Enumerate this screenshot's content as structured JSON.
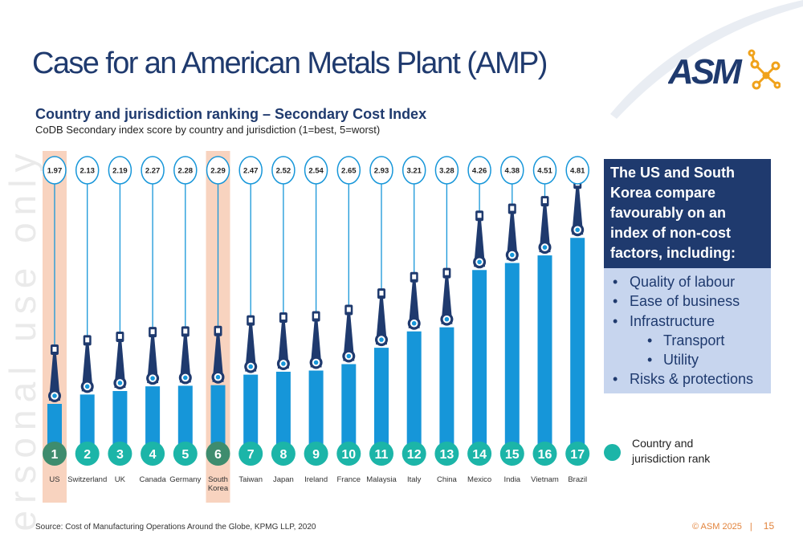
{
  "slide": {
    "title": "Case for an American Metals Plant (AMP)",
    "logo_text": "ASM",
    "watermark": "ersonal use only",
    "source": "Source: Cost of Manufacturing Operations Around the Globe, KPMG LLP, 2020",
    "copyright": "© ASM 2025",
    "separator": "|",
    "page_number": "15"
  },
  "callout": {
    "heading": "The US and South Korea compare favourably on an index of non-cost factors, including:",
    "bullets": [
      {
        "text": "Quality of labour",
        "level": 1
      },
      {
        "text": "Ease of business",
        "level": 1
      },
      {
        "text": "Infrastructure",
        "level": 1
      },
      {
        "text": "Transport",
        "level": 2
      },
      {
        "text": "Utility",
        "level": 2
      },
      {
        "text": "Risks & protections",
        "level": 1
      }
    ],
    "bullet_symbol": "•"
  },
  "legend": {
    "label": "Country and jurisdiction rank",
    "color": "#1cb5a8"
  },
  "colors": {
    "navy": "#1f3a6e",
    "bar": "#1696d9",
    "highlight": "#f8d3bf",
    "rank_default": "#1cb5a8",
    "rank_highlight": "#3e8c6e",
    "accent": "#e2833b"
  },
  "chart_data": {
    "type": "bar",
    "title": "Country and jurisdiction ranking – Secondary Cost Index",
    "subtitle": "CoDB Secondary index score by country and jurisdiction (1=best, 5=worst)",
    "categories": [
      "US",
      "Switzerland",
      "UK",
      "Canada",
      "Germany",
      "South Korea",
      "Taiwan",
      "Japan",
      "Ireland",
      "France",
      "Malaysia",
      "Italy",
      "China",
      "Mexico",
      "India",
      "Vietnam",
      "Brazil"
    ],
    "values": [
      1.97,
      2.13,
      2.19,
      2.27,
      2.28,
      2.29,
      2.47,
      2.52,
      2.54,
      2.65,
      2.93,
      3.21,
      3.28,
      4.26,
      4.38,
      4.51,
      4.81
    ],
    "value_labels": [
      "1.97",
      "2.13",
      "2.19",
      "2.27",
      "2.28",
      "2.29",
      "2.47",
      "2.52",
      "2.54",
      "2.65",
      "2.93",
      "3.21",
      "3.28",
      "4.26",
      "4.38",
      "4.51",
      "4.81"
    ],
    "ranks": [
      "1",
      "2",
      "3",
      "4",
      "5",
      "6",
      "7",
      "8",
      "9",
      "10",
      "11",
      "12",
      "13",
      "14",
      "15",
      "16",
      "17"
    ],
    "highlighted": [
      "US",
      "South Korea"
    ],
    "xlabel": "",
    "ylabel": "",
    "ylim": [
      1,
      5
    ],
    "grid": false,
    "legend_position": "right"
  }
}
